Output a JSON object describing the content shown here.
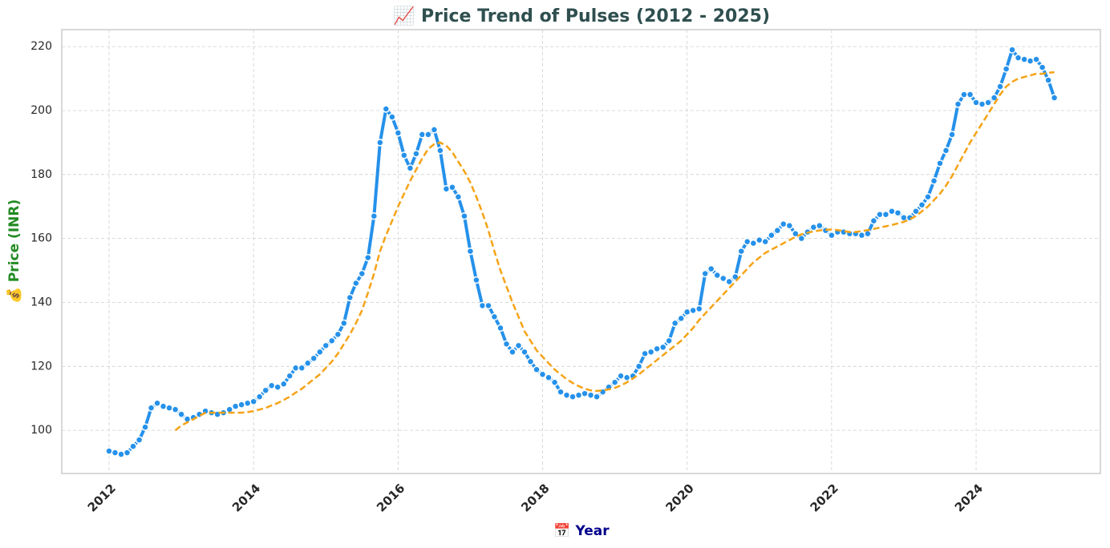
{
  "chart_data": {
    "type": "line",
    "title": "📈 Price Trend of Pulses (2012 - 2025)",
    "xlabel": "📅 Year",
    "ylabel": "💰 Price (INR)",
    "x": [
      2012,
      2012.083,
      2012.167,
      2012.25,
      2012.333,
      2012.417,
      2012.5,
      2012.583,
      2012.667,
      2012.75,
      2012.833,
      2012.917,
      2013,
      2013.083,
      2013.167,
      2013.25,
      2013.333,
      2013.417,
      2013.5,
      2013.583,
      2013.667,
      2013.75,
      2013.833,
      2013.917,
      2014,
      2014.083,
      2014.167,
      2014.25,
      2014.333,
      2014.417,
      2014.5,
      2014.583,
      2014.667,
      2014.75,
      2014.833,
      2014.917,
      2015,
      2015.083,
      2015.167,
      2015.25,
      2015.333,
      2015.417,
      2015.5,
      2015.583,
      2015.667,
      2015.75,
      2015.833,
      2015.917,
      2016,
      2016.083,
      2016.167,
      2016.25,
      2016.333,
      2016.417,
      2016.5,
      2016.583,
      2016.667,
      2016.75,
      2016.833,
      2016.917,
      2017,
      2017.083,
      2017.167,
      2017.25,
      2017.333,
      2017.417,
      2017.5,
      2017.583,
      2017.667,
      2017.75,
      2017.833,
      2017.917,
      2018,
      2018.083,
      2018.167,
      2018.25,
      2018.333,
      2018.417,
      2018.5,
      2018.583,
      2018.667,
      2018.75,
      2018.833,
      2018.917,
      2019,
      2019.083,
      2019.167,
      2019.25,
      2019.333,
      2019.417,
      2019.5,
      2019.583,
      2019.667,
      2019.75,
      2019.833,
      2019.917,
      2020,
      2020.083,
      2020.167,
      2020.25,
      2020.333,
      2020.417,
      2020.5,
      2020.583,
      2020.667,
      2020.75,
      2020.833,
      2020.917,
      2021,
      2021.083,
      2021.167,
      2021.25,
      2021.333,
      2021.417,
      2021.5,
      2021.583,
      2021.667,
      2021.75,
      2021.833,
      2021.917,
      2022,
      2022.083,
      2022.167,
      2022.25,
      2022.333,
      2022.417,
      2022.5,
      2022.583,
      2022.667,
      2022.75,
      2022.833,
      2022.917,
      2023,
      2023.083,
      2023.167,
      2023.25,
      2023.333,
      2023.417,
      2023.5,
      2023.583,
      2023.667,
      2023.75,
      2023.833,
      2023.917,
      2024,
      2024.083,
      2024.167,
      2024.25,
      2024.333,
      2024.417,
      2024.5,
      2024.583,
      2024.667,
      2024.75,
      2024.833,
      2024.917,
      2025,
      2025.083
    ],
    "series": [
      {
        "color": "#2591ea",
        "line_style": "solid",
        "marker": true,
        "values": [
          93.5,
          93,
          92.5,
          93,
          95,
          97,
          101,
          107,
          108.5,
          107.5,
          107,
          106.5,
          105,
          103.5,
          104,
          105,
          106,
          105.5,
          105,
          105.5,
          106.5,
          107.5,
          108,
          108.5,
          109,
          110.5,
          112.5,
          114,
          113.5,
          114.5,
          117,
          119.5,
          119.5,
          121,
          122.5,
          124.5,
          126.5,
          128,
          130,
          133.5,
          141.5,
          146,
          149,
          154,
          167,
          190,
          200.5,
          198,
          193,
          186,
          182,
          186.5,
          192.5,
          192.5,
          194,
          187.5,
          175.5,
          176,
          173,
          167,
          156,
          147,
          139,
          139,
          135.5,
          132,
          127,
          124.5,
          126.5,
          124.5,
          121.5,
          119,
          117.5,
          116.5,
          115,
          112,
          111,
          110.5,
          111,
          111.5,
          111,
          110.5,
          112,
          113.5,
          115,
          117,
          116.5,
          117,
          120,
          124,
          124.5,
          125.5,
          126,
          128,
          133.5,
          135,
          137,
          137.5,
          138,
          149,
          150.5,
          148.5,
          147.5,
          146.5,
          148,
          156,
          159,
          158.5,
          159.5,
          159,
          161,
          162.5,
          164.5,
          164,
          161.5,
          160,
          162,
          163.5,
          164,
          162.5,
          161,
          162,
          162,
          161.5,
          161.5,
          161,
          161.5,
          165.5,
          167.5,
          167.5,
          168.5,
          168,
          166.5,
          166.5,
          168.5,
          170.5,
          173,
          178,
          183.5,
          187.5,
          192.5,
          202,
          205,
          205,
          202.5,
          202,
          202.5,
          204,
          207.5,
          213,
          219,
          216.5,
          216,
          215.5,
          216,
          213.5,
          209.5,
          204
        ]
      },
      {
        "color": "#f5a316",
        "line_style": "dashed",
        "marker": false,
        "values": [
          null,
          null,
          null,
          null,
          null,
          null,
          null,
          null,
          null,
          null,
          null,
          100,
          101.5,
          102.5,
          103.5,
          104.5,
          105.5,
          105.5,
          105.5,
          105.5,
          105.5,
          105.5,
          105.5,
          105.7,
          106,
          106.5,
          107,
          107.8,
          108.5,
          109.5,
          110.5,
          111.8,
          113,
          114.5,
          116,
          117.5,
          119.5,
          121.5,
          124,
          127,
          130,
          133.5,
          137.5,
          143,
          149,
          156,
          161,
          165.5,
          170,
          174,
          178,
          181.5,
          185,
          188,
          189.5,
          190,
          189,
          187,
          184,
          181,
          177.5,
          173,
          168,
          162.5,
          156,
          150,
          145,
          140,
          135.5,
          131,
          128,
          125,
          123,
          121,
          119,
          117.5,
          116,
          114.8,
          113.8,
          113,
          112.5,
          112.3,
          112.5,
          112.8,
          113.3,
          114,
          115,
          116.2,
          117.5,
          119,
          120.5,
          122,
          123.5,
          125,
          126.5,
          128,
          130,
          132,
          134.5,
          136.5,
          138.5,
          140.5,
          142.5,
          144.5,
          146.5,
          148.5,
          150.5,
          152.5,
          154,
          155.5,
          156.5,
          157.5,
          158.5,
          159.5,
          160.5,
          161.3,
          161.8,
          162.2,
          162.5,
          162.7,
          162.8,
          162.6,
          162.3,
          162,
          162,
          162.3,
          162.6,
          163,
          163.4,
          163.8,
          164.2,
          164.7,
          165.2,
          166,
          167,
          168.5,
          170,
          172,
          174,
          176.5,
          179.5,
          183,
          186.5,
          190,
          193,
          196,
          199,
          202,
          205,
          207.5,
          209,
          210,
          210.5,
          211,
          211.5,
          211.5,
          211.8,
          212
        ]
      }
    ],
    "xlim": [
      2011.345,
      2025.72
    ],
    "xticks": [
      2012,
      2014,
      2016,
      2018,
      2020,
      2022,
      2024
    ],
    "ylim": [
      86.5,
      225.3
    ],
    "yticks": [
      100,
      120,
      140,
      160,
      180,
      200,
      220
    ],
    "grid": true
  }
}
